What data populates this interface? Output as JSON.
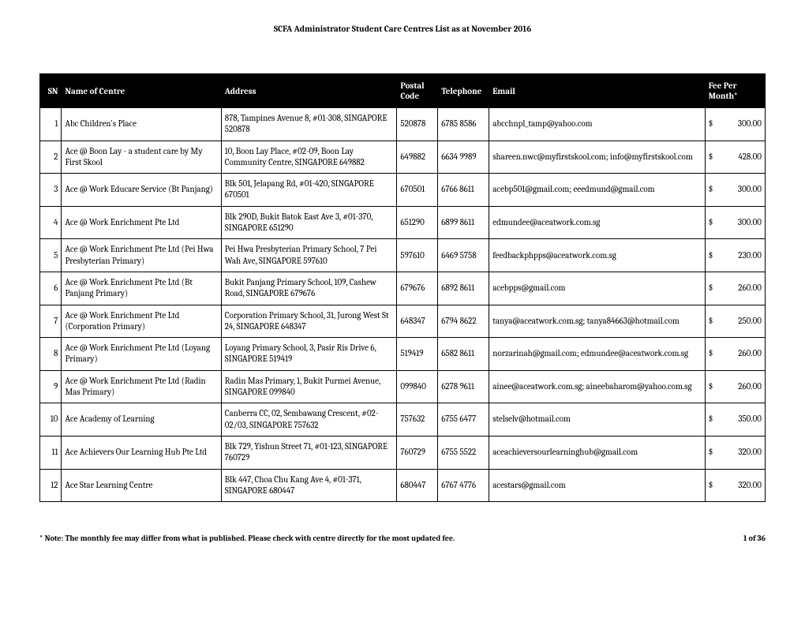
{
  "title": "SCFA Administrator Student Care Centres List as at November 2016",
  "columns": {
    "sn": "SN",
    "name": "Name of Centre",
    "address": "Address",
    "postal": "Postal Code",
    "telephone": "Telephone",
    "email": "Email",
    "fee": "Fee Per Month*"
  },
  "rows": [
    {
      "sn": "1",
      "name": "Abc Children's Place",
      "address": "878, Tampines Avenue 8, #01-308, SINGAPORE 520878",
      "postal": "520878",
      "tel": "6785 8586",
      "email": "abcchnpl_tamp@yahoo.com",
      "fee_sym": "$",
      "fee": "300.00"
    },
    {
      "sn": "2",
      "name": "Ace @ Boon Lay - a student care by My First Skool",
      "address": "10, Boon Lay Place, #02-09, Boon Lay Community Centre, SINGAPORE 649882",
      "postal": "649882",
      "tel": "6634 9989",
      "email": "shareen.nwc@myfirstskool.com; info@myfirstskool.com",
      "fee_sym": "$",
      "fee": "428.00"
    },
    {
      "sn": "3",
      "name": "Ace @ Work Educare Service (Bt Panjang)",
      "address": "Blk 501, Jelapang Rd, #01-420, SINGAPORE 670501",
      "postal": "670501",
      "tel": "6766 8611",
      "email": "acebp501@gmail.com; eeedmund@gmail.com",
      "fee_sym": "$",
      "fee": "300.00"
    },
    {
      "sn": "4",
      "name": "Ace @ Work Enrichment Pte Ltd",
      "address": "Blk 290D, Bukit Batok East Ave 3, #01-370, SINGAPORE 651290",
      "postal": "651290",
      "tel": "6899 8611",
      "email": "edmundee@aceatwork.com.sg",
      "fee_sym": "$",
      "fee": "300.00"
    },
    {
      "sn": "5",
      "name": "Ace @ Work Enrichment Pte Ltd (Pei Hwa Presbyterian Primary)",
      "address": "Pei Hwa Presbyterian Primary School, 7 Pei Wah Ave, SINGAPORE 597610",
      "postal": "597610",
      "tel": "6469 5758",
      "email": "feedbackphpps@aceatwork.com.sg",
      "fee_sym": "$",
      "fee": "230.00"
    },
    {
      "sn": "6",
      "name": "Ace @ Work Enrichment Pte Ltd (Bt Panjang Primary)",
      "address": "Bukit Panjang Primary School, 109, Cashew Road, SINGAPORE 679676",
      "postal": "679676",
      "tel": "6892 8611",
      "email": "acebpps@gmail.com",
      "fee_sym": "$",
      "fee": "260.00"
    },
    {
      "sn": "7",
      "name": "Ace @ Work Enrichment Pte Ltd (Corporation Primary)",
      "address": "Corporation Primary School,  31, Jurong West St 24, SINGAPORE 648347",
      "postal": "648347",
      "tel": "6794 8622",
      "email": "tanya@aceatwork.com.sg; tanya84663@hotmail.com",
      "fee_sym": "$",
      "fee": "250.00"
    },
    {
      "sn": "8",
      "name": "Ace @ Work Enrichment Pte Ltd (Loyang Primary)",
      "address": "Loyang Primary School,  3, Pasir Ris Drive 6, SINGAPORE 519419",
      "postal": "519419",
      "tel": "6582 8611",
      "email": "norzarinah@gmail.com; edmundee@aceatwork.com.sg",
      "fee_sym": "$",
      "fee": "260.00"
    },
    {
      "sn": "9",
      "name": "Ace @ Work Enrichment Pte Ltd (Radin Mas Primary)",
      "address": "Radin Mas Primary, 1, Bukit Purmei Avenue, SINGAPORE 099840",
      "postal": "099840",
      "tel": "6278 9611",
      "email": "ainee@aceatwork.com.sg; aineebaharom@yahoo.com.sg",
      "fee_sym": "$",
      "fee": "260.00"
    },
    {
      "sn": "10",
      "name": "Ace Academy of Learning",
      "address": "Canberra CC, 02, Sembawang Crescent, #02-02/03, SINGAPORE 757632",
      "postal": "757632",
      "tel": "6755 6477",
      "email": "stelselv@hotmail.com",
      "fee_sym": "$",
      "fee": "350.00"
    },
    {
      "sn": "11",
      "name": "Ace Achievers Our Learning Hub Pte Ltd",
      "address": "Blk 729, Yishun Street 71, #01-123, SINGAPORE 760729",
      "postal": "760729",
      "tel": "6755 5522",
      "email": "aceachieversourlearninghub@gmail.com",
      "fee_sym": "$",
      "fee": "320.00"
    },
    {
      "sn": "12",
      "name": "Ace Star Learning Centre",
      "address": "Blk 447, Choa Chu Kang Ave 4,  #01-371, SINGAPORE 680447",
      "postal": "680447",
      "tel": "6767 4776",
      "email": "acestars@gmail.com",
      "fee_sym": "$",
      "fee": "320.00"
    }
  ],
  "footer": {
    "note": "* Note:  The monthly fee may differ from what is published.  Please check with centre directly for the most updated fee.",
    "page": "1 of 36"
  }
}
